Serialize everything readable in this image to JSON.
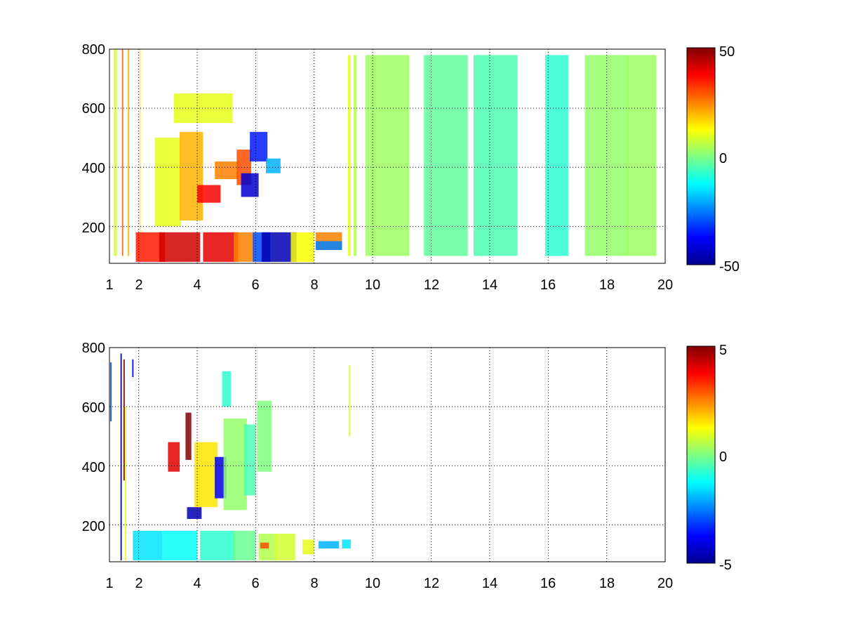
{
  "chart_data": [
    {
      "type": "heatmap",
      "title": "",
      "xlabel": "",
      "ylabel": "",
      "xlim": [
        1,
        20
      ],
      "ylim": [
        75,
        800
      ],
      "xticks": [
        1,
        2,
        4,
        6,
        8,
        10,
        12,
        14,
        16,
        18,
        20
      ],
      "yticks": [
        200,
        400,
        600,
        800
      ],
      "grid": true,
      "colormap": "jet",
      "colorbar": {
        "min": -50,
        "max": 50,
        "ticks": [
          50,
          0,
          -50
        ],
        "tick_labels": [
          "50",
          "0",
          "-50"
        ]
      },
      "series": [
        {
          "values": [
            [
              1.2,
              800,
              100,
              0.1,
              8
            ],
            [
              1.45,
              800,
              100,
              0.04,
              30
            ],
            [
              1.65,
              800,
              100,
              0.05,
              20
            ],
            [
              2.05,
              800,
              100,
              0.03,
              15
            ],
            [
              2.4,
              180,
              80,
              1.0,
              35
            ],
            [
              3.4,
              180,
              80,
              1.4,
              42
            ],
            [
              4.8,
              180,
              80,
              1.2,
              40
            ],
            [
              5.6,
              180,
              80,
              0.7,
              25
            ],
            [
              6.2,
              180,
              80,
              0.6,
              -30
            ],
            [
              6.8,
              180,
              80,
              1.2,
              -45
            ],
            [
              7.6,
              180,
              80,
              0.8,
              12
            ],
            [
              8.5,
              180,
              120,
              0.9,
              25
            ],
            [
              8.5,
              150,
              120,
              0.9,
              -25
            ],
            [
              3.0,
              500,
              200,
              0.9,
              10
            ],
            [
              3.8,
              520,
              220,
              0.8,
              20
            ],
            [
              4.4,
              340,
              280,
              0.8,
              38
            ],
            [
              5.0,
              420,
              360,
              0.8,
              25
            ],
            [
              5.6,
              460,
              340,
              0.5,
              30
            ],
            [
              5.8,
              380,
              300,
              0.6,
              -42
            ],
            [
              6.1,
              520,
              420,
              0.6,
              -35
            ],
            [
              6.6,
              430,
              380,
              0.5,
              -20
            ],
            [
              4.2,
              650,
              550,
              2.0,
              10
            ],
            [
              9.2,
              780,
              100,
              0.1,
              10
            ],
            [
              9.4,
              780,
              100,
              0.1,
              5
            ],
            [
              10.5,
              780,
              100,
              1.5,
              3
            ],
            [
              12.5,
              780,
              100,
              1.5,
              -3
            ],
            [
              14.2,
              780,
              100,
              1.5,
              -5
            ],
            [
              16.3,
              780,
              100,
              0.8,
              -8
            ],
            [
              18.0,
              780,
              100,
              1.5,
              2
            ],
            [
              19.2,
              780,
              100,
              1.0,
              3
            ]
          ]
        }
      ]
    },
    {
      "type": "heatmap",
      "title": "",
      "xlabel": "",
      "ylabel": "",
      "xlim": [
        1,
        20
      ],
      "ylim": [
        75,
        800
      ],
      "xticks": [
        1,
        2,
        4,
        6,
        8,
        10,
        12,
        14,
        16,
        18,
        20
      ],
      "yticks": [
        200,
        400,
        600,
        800
      ],
      "grid": true,
      "colormap": "jet",
      "colorbar": {
        "min": -5,
        "max": 5,
        "ticks": [
          5,
          0,
          -5
        ],
        "tick_labels": [
          "5",
          "0",
          "-5"
        ]
      },
      "series": [
        {
          "values": [
            [
              1.05,
              750,
              550,
              0.05,
              -3
            ],
            [
              1.4,
              780,
              80,
              0.05,
              -5
            ],
            [
              1.5,
              760,
              350,
              0.05,
              5
            ],
            [
              1.55,
              600,
              80,
              0.05,
              1
            ],
            [
              1.8,
              760,
              700,
              0.05,
              -4
            ],
            [
              2.3,
              180,
              80,
              1.0,
              -1.5
            ],
            [
              3.4,
              180,
              80,
              1.2,
              -1.2
            ],
            [
              4.7,
              180,
              80,
              1.2,
              -0.8
            ],
            [
              5.6,
              180,
              80,
              0.8,
              -0.2
            ],
            [
              6.4,
              170,
              80,
              0.6,
              0.5
            ],
            [
              7.0,
              170,
              80,
              0.7,
              0.8
            ],
            [
              7.8,
              150,
              100,
              0.4,
              1
            ],
            [
              8.5,
              145,
              120,
              0.7,
              -2
            ],
            [
              9.1,
              150,
              120,
              0.3,
              -1.5
            ],
            [
              6.3,
              140,
              120,
              0.3,
              3
            ],
            [
              3.2,
              480,
              380,
              0.4,
              4
            ],
            [
              3.7,
              580,
              420,
              0.2,
              5
            ],
            [
              3.9,
              260,
              220,
              0.5,
              -4.5
            ],
            [
              4.3,
              480,
              260,
              0.8,
              1.5
            ],
            [
              4.8,
              430,
              290,
              0.4,
              -4
            ],
            [
              5.3,
              560,
              250,
              0.8,
              0.2
            ],
            [
              5.8,
              540,
              300,
              0.4,
              -0.5
            ],
            [
              6.3,
              620,
              380,
              0.5,
              0
            ],
            [
              5.0,
              720,
              600,
              0.3,
              -0.8
            ],
            [
              9.2,
              740,
              500,
              0.05,
              1
            ]
          ]
        }
      ]
    }
  ]
}
